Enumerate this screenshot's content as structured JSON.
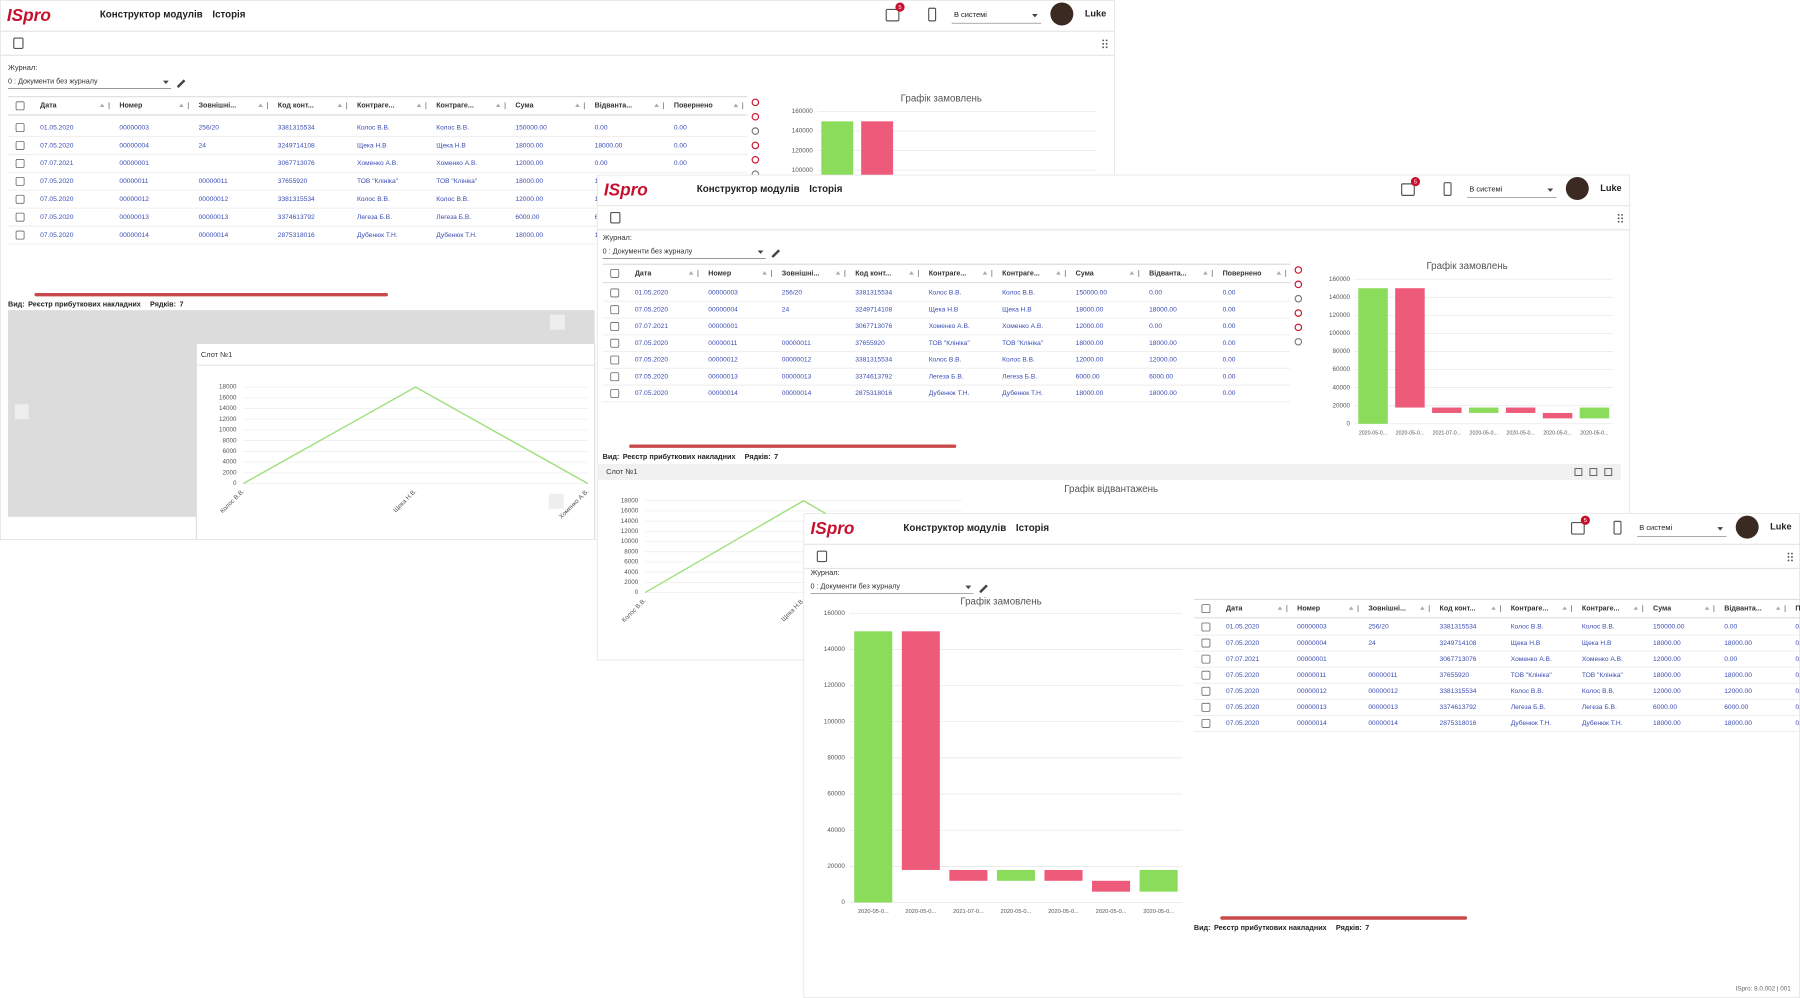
{
  "app": {
    "logo": "ISpro",
    "nav": [
      "Конструктор модулів",
      "Історія"
    ],
    "notifications": 5,
    "status": "В системі",
    "user": "Luke"
  },
  "journal": {
    "label": "Журнал:",
    "value": "0 : Документи без журналу"
  },
  "table": {
    "columns": [
      "Дата",
      "Номер",
      "Зовнішні...",
      "Код конт...",
      "Контраге...",
      "Контраге...",
      "Сума",
      "Відванта...",
      "Повернено"
    ],
    "rows": [
      [
        "01.05.2020",
        "00000003",
        "256/20",
        "3381315534",
        "Колос В.В.",
        "Колос В.В.",
        "150000.00",
        "0.00",
        "0.00"
      ],
      [
        "07.05.2020",
        "00000004",
        "24",
        "3249714108",
        "Щека Н.В",
        "Щека Н.В",
        "18000.00",
        "18000.00",
        "0.00"
      ],
      [
        "07.07.2021",
        "00000001",
        null,
        "3067713076",
        "Хоменко А.В.",
        "Хоменко А.В.",
        "12000.00",
        "0.00",
        "0.00"
      ],
      [
        "07.05.2020",
        "00000011",
        "00000011",
        "37655920",
        "ТОВ \"Клініка\"",
        "ТОВ \"Клініка\"",
        "18000.00",
        "18000.00",
        "0.00"
      ],
      [
        "07.05.2020",
        "00000012",
        "00000012",
        "3381315534",
        "Колос В.В.",
        "Колос В.В.",
        "12000.00",
        "12000.00",
        "0.00"
      ],
      [
        "07.05.2020",
        "00000013",
        "00000013",
        "3374613792",
        "Легеза Б.В.",
        "Легеза Б.В.",
        "6000.00",
        "6000.00",
        "0.00"
      ],
      [
        "07.05.2020",
        "00000014",
        "00000014",
        "2875318016",
        "Дубенюк Т.Н.",
        "Дубенюк Т.Н.",
        "18000.00",
        "18000.00",
        "0.00"
      ]
    ]
  },
  "footer": {
    "view_label": "Вид:",
    "view": "Реєстр прибуткових накладних",
    "rows_label": "Рядків:",
    "rows_count": 7
  },
  "slot": {
    "title": "Слот №1"
  },
  "version": "ISpro: 8.0.002 | 001",
  "chart_data": [
    {
      "type": "waterfall",
      "title": "Графік замовлень",
      "categories": [
        "2020-05-0...",
        "2020-05-0...",
        "2021-07-0...",
        "2020-05-0...",
        "2020-05-0...",
        "2020-05-0...",
        "2020-05-0..."
      ],
      "values": [
        150000,
        18000,
        12000,
        18000,
        12000,
        6000,
        18000
      ],
      "colors": {
        "increase": "#8cdc5c",
        "decrease": "#ee5a7a"
      },
      "ylim": [
        0,
        160000
      ],
      "yticks": [
        0,
        20000,
        40000,
        60000,
        80000,
        100000,
        120000,
        140000,
        160000
      ],
      "grid": true
    },
    {
      "type": "line",
      "categories": [
        "Колос В.В.",
        "Щека Н.В.",
        "Хоменко А.В."
      ],
      "values": [
        0,
        18000,
        0
      ],
      "color": "#9be07a",
      "ylim": [
        0,
        18000
      ],
      "yticks": [
        0,
        2000,
        4000,
        6000,
        8000,
        10000,
        12000,
        14000,
        16000,
        18000
      ],
      "grid": true
    },
    {
      "type": "line",
      "title": "Графік відвантажень"
    }
  ]
}
